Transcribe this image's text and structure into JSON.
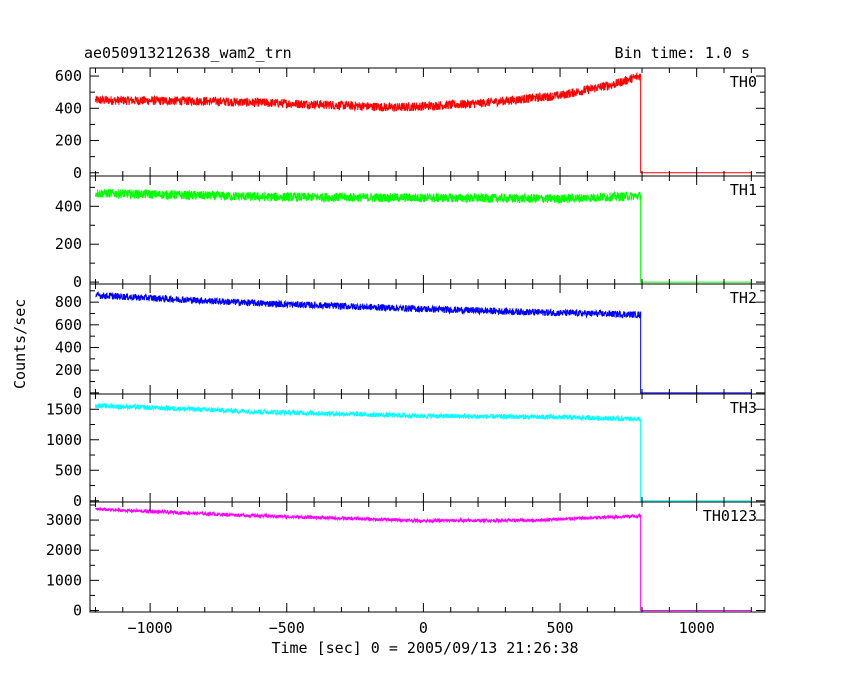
{
  "title": "ae050913212638_wam2_trn",
  "bin_time": "Bin time: 1.0 s",
  "xlabel": "Time [sec] 0 = 2005/09/13 21:26:38",
  "ylabel": "Counts/sec",
  "chart_data": {
    "type": "line",
    "xlim": [
      -1220,
      1250
    ],
    "x_ticks": [
      -1000,
      -500,
      0,
      500,
      1000
    ],
    "x_tick_labels": [
      "−1000",
      "−500",
      "0",
      "500",
      "1000"
    ],
    "dropout_time": 795,
    "data_start": -1200,
    "data_end": 1200,
    "panels": [
      {
        "name": "TH0",
        "color": "#ff0000",
        "ylim": [
          -20,
          650
        ],
        "y_ticks": [
          0,
          200,
          400,
          600
        ],
        "y_tick_labels": [
          "0",
          "200",
          "400",
          "600"
        ],
        "level_points": [
          [
            -1200,
            450
          ],
          [
            -800,
            445
          ],
          [
            -400,
            425
          ],
          [
            -100,
            405
          ],
          [
            200,
            430
          ],
          [
            500,
            480
          ],
          [
            700,
            550
          ],
          [
            790,
            600
          ]
        ],
        "noise": 28
      },
      {
        "name": "TH1",
        "color": "#00ff00",
        "ylim": [
          -10,
          560
        ],
        "y_ticks": [
          0,
          200,
          400
        ],
        "y_tick_labels": [
          "0",
          "200",
          "400"
        ],
        "level_points": [
          [
            -1200,
            470
          ],
          [
            -600,
            450
          ],
          [
            0,
            445
          ],
          [
            500,
            440
          ],
          [
            790,
            455
          ]
        ],
        "noise": 24
      },
      {
        "name": "TH2",
        "color": "#0000ff",
        "ylim": [
          -10,
          960
        ],
        "y_ticks": [
          0,
          200,
          400,
          600,
          800
        ],
        "y_tick_labels": [
          "0",
          "200",
          "400",
          "600",
          "800"
        ],
        "level_points": [
          [
            -1200,
            860
          ],
          [
            -600,
            790
          ],
          [
            0,
            740
          ],
          [
            500,
            705
          ],
          [
            790,
            690
          ]
        ],
        "noise": 30
      },
      {
        "name": "TH3",
        "color": "#00ffff",
        "ylim": [
          -20,
          1750
        ],
        "y_ticks": [
          0,
          500,
          1000,
          1500
        ],
        "y_tick_labels": [
          "0",
          "500",
          "1000",
          "1500"
        ],
        "level_points": [
          [
            -1200,
            1560
          ],
          [
            -600,
            1460
          ],
          [
            0,
            1390
          ],
          [
            500,
            1370
          ],
          [
            790,
            1340
          ]
        ],
        "noise": 40
      },
      {
        "name": "TH0123",
        "color": "#ff00ff",
        "ylim": [
          -50,
          3600
        ],
        "y_ticks": [
          0,
          1000,
          2000,
          3000
        ],
        "y_tick_labels": [
          "0",
          "1000",
          "2000",
          "3000"
        ],
        "level_points": [
          [
            -1200,
            3360
          ],
          [
            -600,
            3140
          ],
          [
            0,
            2980
          ],
          [
            400,
            2990
          ],
          [
            790,
            3140
          ]
        ],
        "noise": 55
      }
    ]
  }
}
